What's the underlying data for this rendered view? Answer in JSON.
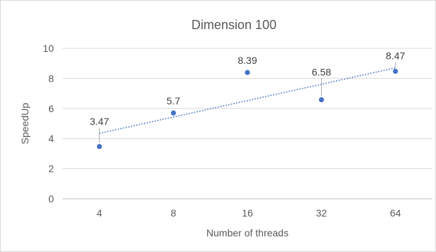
{
  "chart_data": {
    "type": "scatter",
    "title": "Dimension 100",
    "xlabel": "Number of threads",
    "ylabel": "SpeedUp",
    "categories": [
      "4",
      "8",
      "16",
      "32",
      "64"
    ],
    "ylim": [
      0,
      10
    ],
    "yticks": [
      0,
      2,
      4,
      6,
      8,
      10
    ],
    "grid": true,
    "legend": "none",
    "series": [
      {
        "values": [
          3.47,
          5.7,
          8.39,
          6.58,
          8.47
        ],
        "labels": [
          "3.47",
          "5.7",
          "8.39",
          "6.58",
          "8.47"
        ],
        "color": "#4472c4"
      }
    ],
    "trendline": {
      "type": "linear",
      "style": "dotted",
      "color": "#4472c4"
    }
  }
}
